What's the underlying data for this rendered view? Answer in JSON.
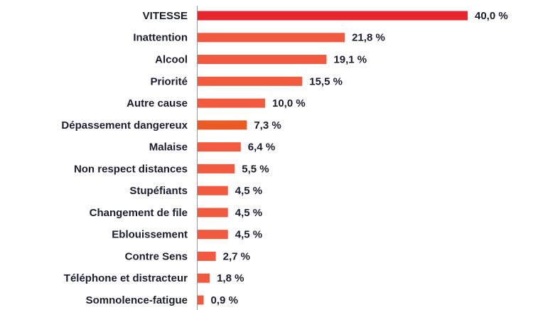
{
  "chart_data": {
    "type": "barh",
    "categories": [
      "VITESSE",
      "Inattention",
      "Alcool",
      "Priorité",
      "Autre cause",
      "Dépassement dangereux",
      "Malaise",
      "Non respect distances",
      "Stupéfiants",
      "Changement de file",
      "Eblouissement",
      "Contre Sens",
      "Téléphone et distracteur",
      "Somnolence-fatigue"
    ],
    "values": [
      40.0,
      21.8,
      19.1,
      15.5,
      10.0,
      7.3,
      6.4,
      5.5,
      4.5,
      4.5,
      4.5,
      2.7,
      1.8,
      0.9
    ],
    "value_labels": [
      "40,0 %",
      "21,8 %",
      "19,1 %",
      "15,5 %",
      "10,0 %",
      "7,3 %",
      "6,4 %",
      "5,5 %",
      "4,5 %",
      "4,5 %",
      "4,5 %",
      "2,7 %",
      "1,8 %",
      "0,9 %"
    ],
    "colors": [
      "#e8262d",
      "#f15a3f",
      "#f15a3f",
      "#f15a3f",
      "#f15a3f",
      "#eb5a25",
      "#f15a3f",
      "#f15a3f",
      "#f15a3f",
      "#f15a3f",
      "#f15a3f",
      "#f15a3f",
      "#f15a3f",
      "#f15a3f"
    ],
    "xlim": [
      0,
      40
    ]
  }
}
